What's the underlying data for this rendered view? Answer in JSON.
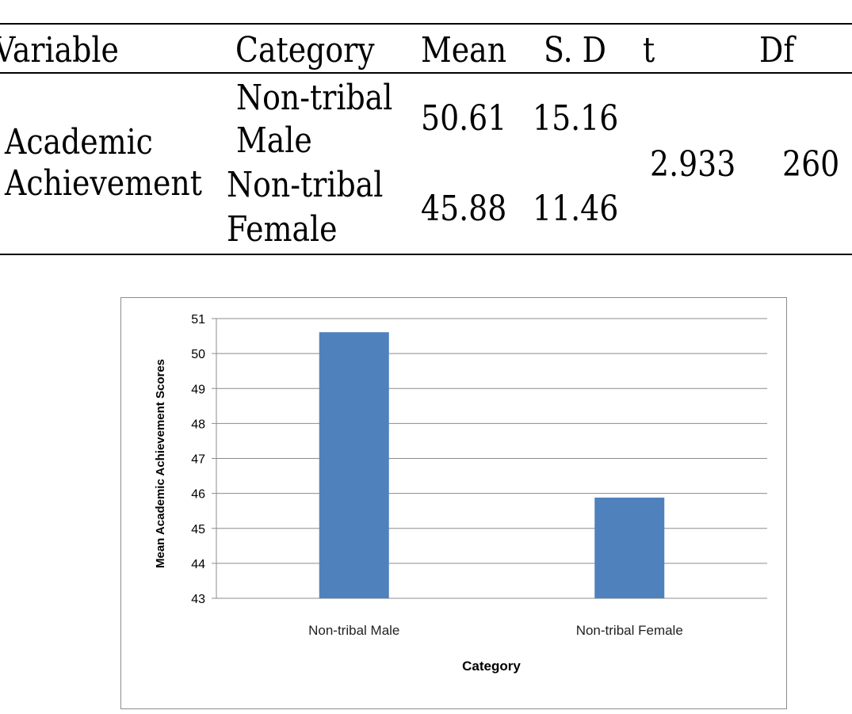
{
  "table": {
    "headers": [
      "Variable",
      "Category",
      "Mean",
      "S. D",
      "t",
      "Df"
    ],
    "variable_line1": "Academic",
    "variable_line2": "Achievement",
    "row1": {
      "category_line1": "Non-tribal",
      "category_line2": "Male",
      "mean": "50.61",
      "sd": "15.16"
    },
    "row2": {
      "category_line1": "Non-tribal",
      "category_line2": "Female",
      "mean": "45.88",
      "sd": "11.46"
    },
    "t": "2.933",
    "df": "260"
  },
  "chart_data": {
    "type": "bar",
    "categories": [
      "Non-tribal Male",
      "Non-tribal Female"
    ],
    "values": [
      50.61,
      45.88
    ],
    "xlabel": "Category",
    "ylabel": "Mean Academic Achievement Scores",
    "ylim": [
      43,
      51
    ],
    "yticks": [
      43,
      44,
      45,
      46,
      47,
      48,
      49,
      50,
      51
    ],
    "grid": true,
    "bar_color": "#4f81bd",
    "grid_color": "#8c8c8c"
  }
}
